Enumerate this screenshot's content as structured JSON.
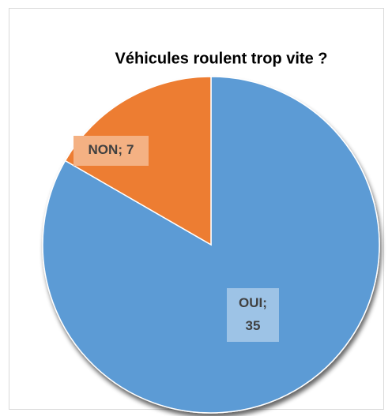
{
  "chart_data": {
    "type": "pie",
    "title": "Véhicules roulent trop vite ?",
    "categories": [
      "OUI",
      "NON"
    ],
    "values": [
      35,
      7
    ],
    "colors": [
      "#5b9bd5",
      "#ed7d31"
    ],
    "label_separator": ";"
  }
}
